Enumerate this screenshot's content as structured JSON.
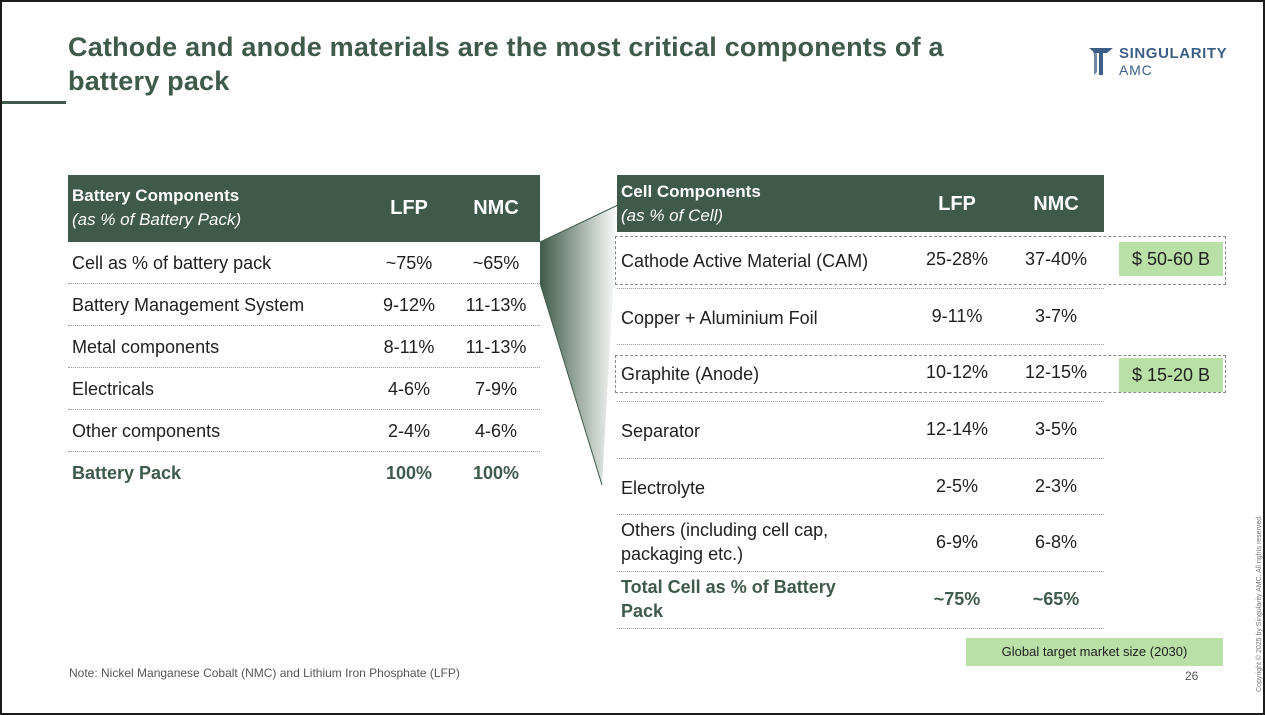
{
  "title": "Cathode and anode materials are the most critical components of a battery pack",
  "logo": {
    "line1": "SINGULARITY",
    "line2": "AMC",
    "color": "#3d5f86"
  },
  "left_table": {
    "header_line1": "Battery Components",
    "header_line2": "(as % of Battery Pack)",
    "col1": "LFP",
    "col2": "NMC",
    "rows": [
      {
        "label": "Cell as % of battery pack",
        "lfp": "~75%",
        "nmc": "~65%"
      },
      {
        "label": "Battery Management System",
        "lfp": "9-12%",
        "nmc": "11-13%"
      },
      {
        "label": "Metal components",
        "lfp": "8-11%",
        "nmc": "11-13%"
      },
      {
        "label": "Electricals",
        "lfp": "4-6%",
        "nmc": "7-9%"
      },
      {
        "label": "Other components",
        "lfp": "2-4%",
        "nmc": "4-6%"
      },
      {
        "label": "Battery Pack",
        "lfp": "100%",
        "nmc": "100%"
      }
    ]
  },
  "right_table": {
    "header_line1": "Cell Components",
    "header_line2": "(as % of Cell)",
    "col1": "LFP",
    "col2": "NMC",
    "rows": [
      {
        "label": "Cathode Active Material (CAM)",
        "lfp": "25-28%",
        "nmc": "37-40%"
      },
      {
        "label": "Copper + Aluminium Foil",
        "lfp": "9-11%",
        "nmc": "3-7%"
      },
      {
        "label": "Graphite (Anode)",
        "lfp": "10-12%",
        "nmc": "12-15%"
      },
      {
        "label": "Separator",
        "lfp": "12-14%",
        "nmc": "3-5%"
      },
      {
        "label": "Electrolyte",
        "lfp": "2-5%",
        "nmc": "2-3%"
      },
      {
        "label": "Others (including cell cap, packaging etc.)",
        "lfp": "6-9%",
        "nmc": "6-8%"
      },
      {
        "label": "Total Cell as % of Battery Pack",
        "lfp": "~75%",
        "nmc": "~65%"
      }
    ]
  },
  "market": {
    "cam": "$ 50-60 B",
    "graphite": "$ 15-20 B",
    "legend": "Global target market size (2030)"
  },
  "note": "Note: Nickel Manganese Cobalt (NMC) and Lithium Iron Phosphate (LFP)",
  "page_number": "26",
  "copyright": "Copyright © 2025 by Singularity AMC. All rights reserved.",
  "colors": {
    "header": "#3f5a4a",
    "highlight": "#b9e0a6"
  }
}
